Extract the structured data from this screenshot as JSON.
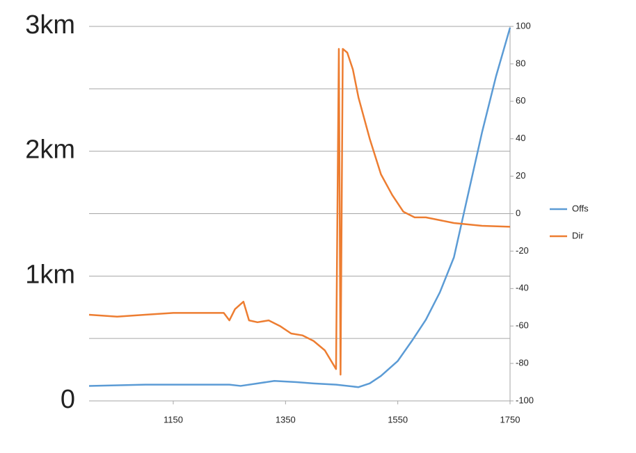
{
  "chart_data": {
    "type": "line",
    "xlim": [
      1000,
      1750
    ],
    "xticks": [
      1150,
      1350,
      1550,
      1750
    ],
    "ylim": [
      0,
      3
    ],
    "yticks": [
      {
        "value": 0,
        "label": "0"
      },
      {
        "value": 1,
        "label": "1km"
      },
      {
        "value": 2,
        "label": "2km"
      },
      {
        "value": 3,
        "label": "3km"
      }
    ],
    "ygrid": [
      0,
      0.5,
      1,
      1.5,
      2,
      2.5,
      3
    ],
    "y2lim": [
      -100,
      100
    ],
    "y2ticks": [
      -100,
      -80,
      -60,
      -40,
      -20,
      0,
      20,
      40,
      60,
      80,
      100
    ],
    "legend": "right",
    "series": [
      {
        "name": "Offs",
        "color": "#5b9bd5",
        "axis": "y",
        "x": [
          1000,
          1100,
          1250,
          1270,
          1300,
          1330,
          1370,
          1400,
          1440,
          1480,
          1500,
          1520,
          1550,
          1575,
          1600,
          1625,
          1650,
          1675,
          1700,
          1725,
          1750
        ],
        "values": [
          0.12,
          0.13,
          0.13,
          0.12,
          0.14,
          0.16,
          0.15,
          0.14,
          0.13,
          0.11,
          0.14,
          0.2,
          0.32,
          0.48,
          0.65,
          0.87,
          1.15,
          1.65,
          2.15,
          2.6,
          2.99
        ]
      },
      {
        "name": "Dir",
        "color": "#ed7d31",
        "axis": "y2",
        "x": [
          1000,
          1050,
          1100,
          1150,
          1200,
          1240,
          1250,
          1260,
          1275,
          1285,
          1300,
          1320,
          1340,
          1360,
          1380,
          1400,
          1420,
          1440,
          1445,
          1448,
          1452,
          1460,
          1470,
          1480,
          1500,
          1520,
          1540,
          1560,
          1580,
          1600,
          1650,
          1700,
          1750
        ],
        "values": [
          -54,
          -55,
          -54,
          -53,
          -53,
          -53,
          -57,
          -51,
          -47,
          -57,
          -58,
          -57,
          -60,
          -64,
          -65,
          -68,
          -73,
          -83,
          88,
          -86,
          88,
          86,
          77,
          62,
          40,
          21,
          10,
          1,
          -2,
          -2,
          -5,
          -6.5,
          -7
        ]
      }
    ]
  }
}
